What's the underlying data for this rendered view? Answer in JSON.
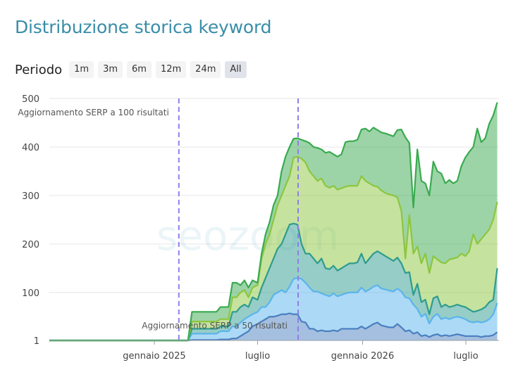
{
  "header": {
    "title": "Distribuzione storica keyword"
  },
  "period": {
    "label": "Periodo",
    "buttons": [
      "1m",
      "3m",
      "6m",
      "12m",
      "24m",
      "All"
    ],
    "selected": "All"
  },
  "watermark": "seozoom",
  "colors": {
    "title": "#3a8da8",
    "grid": "#e6e6e6",
    "annotation": "#8f7ee8",
    "bands": [
      "#4a7fc0",
      "#5ab4ec",
      "#2e9c8e",
      "#8cc63f",
      "#3aaa50"
    ]
  },
  "chart_data": {
    "type": "area",
    "stacked": true,
    "x_start": "2024-07-01",
    "x_end": "2026-08-28",
    "ylim": [
      1,
      500
    ],
    "y_ticks": [
      "1",
      "100",
      "200",
      "300",
      "400",
      "500"
    ],
    "x_ticks": [
      {
        "date": "2025-01-01",
        "label": "gennaio 2025"
      },
      {
        "date": "2025-07-01",
        "label": "luglio"
      },
      {
        "date": "2026-01-01",
        "label": "gennaio 2026"
      },
      {
        "date": "2026-07-01",
        "label": "luglio"
      }
    ],
    "annotations": [
      {
        "date": "2025-02-13",
        "label": "Aggiornamento SERP a 100 risultati"
      },
      {
        "date": "2025-09-10",
        "label": "Aggiornamento SERP a 50 risultati"
      }
    ],
    "x": [
      "2024-07-01",
      "2025-03-01",
      "2025-03-08",
      "2025-04-20",
      "2025-04-27",
      "2025-05-11",
      "2025-05-18",
      "2025-05-25",
      "2025-06-01",
      "2025-06-08",
      "2025-06-15",
      "2025-06-22",
      "2025-07-01",
      "2025-07-08",
      "2025-07-15",
      "2025-07-22",
      "2025-07-29",
      "2025-08-05",
      "2025-08-12",
      "2025-08-19",
      "2025-08-26",
      "2025-09-02",
      "2025-09-09",
      "2025-09-16",
      "2025-09-23",
      "2025-09-30",
      "2025-10-07",
      "2025-10-14",
      "2025-10-21",
      "2025-10-28",
      "2025-11-04",
      "2025-11-11",
      "2025-11-18",
      "2025-11-25",
      "2025-12-02",
      "2025-12-09",
      "2025-12-16",
      "2025-12-23",
      "2025-12-30",
      "2026-01-06",
      "2026-01-13",
      "2026-01-20",
      "2026-01-27",
      "2026-02-03",
      "2026-02-10",
      "2026-02-17",
      "2026-02-24",
      "2026-03-03",
      "2026-03-10",
      "2026-03-17",
      "2026-03-24",
      "2026-03-31",
      "2026-04-07",
      "2026-04-14",
      "2026-04-21",
      "2026-04-28",
      "2026-05-05",
      "2026-05-12",
      "2026-05-19",
      "2026-05-26",
      "2026-06-02",
      "2026-06-09",
      "2026-06-16",
      "2026-06-23",
      "2026-06-30",
      "2026-07-07",
      "2026-07-14",
      "2026-07-21",
      "2026-07-28",
      "2026-08-04",
      "2026-08-11",
      "2026-08-18",
      "2026-08-25"
    ],
    "series": [
      {
        "values": [
          1,
          1,
          2,
          2,
          3,
          3,
          5,
          5,
          10,
          15,
          20,
          30,
          35,
          40,
          45,
          50,
          50,
          52,
          55,
          55,
          57,
          55,
          55,
          40,
          38,
          25,
          25,
          20,
          22,
          20,
          20,
          22,
          20,
          25,
          25,
          25,
          25,
          25,
          30,
          25,
          30,
          35,
          38,
          32,
          30,
          28,
          28,
          35,
          28,
          20,
          22,
          15,
          18,
          10,
          12,
          8,
          12,
          14,
          10,
          12,
          10,
          12,
          14,
          12,
          10,
          10,
          10,
          10,
          8,
          10,
          10,
          12,
          18
        ]
      },
      {
        "values": [
          1,
          1,
          15,
          15,
          20,
          20,
          30,
          30,
          38,
          45,
          50,
          55,
          60,
          70,
          70,
          80,
          95,
          100,
          105,
          100,
          112,
          128,
          130,
          128,
          120,
          110,
          102,
          102,
          98,
          95,
          92,
          98,
          92,
          95,
          98,
          100,
          100,
          100,
          110,
          102,
          106,
          112,
          115,
          108,
          106,
          104,
          102,
          108,
          102,
          90,
          88,
          75,
          66,
          50,
          56,
          36,
          50,
          56,
          45,
          48,
          45,
          48,
          50,
          48,
          45,
          40,
          38,
          40,
          38,
          40,
          45,
          55,
          78
        ]
      },
      {
        "values": [
          1,
          1,
          25,
          25,
          30,
          30,
          60,
          60,
          70,
          75,
          70,
          90,
          85,
          110,
          130,
          150,
          170,
          190,
          200,
          220,
          240,
          242,
          240,
          200,
          180,
          180,
          170,
          160,
          170,
          150,
          148,
          155,
          145,
          150,
          155,
          160,
          160,
          162,
          180,
          160,
          170,
          180,
          185,
          180,
          175,
          170,
          165,
          172,
          160,
          140,
          142,
          95,
          118,
          80,
          85,
          55,
          88,
          92,
          70,
          75,
          70,
          72,
          75,
          72,
          70,
          65,
          60,
          62,
          65,
          70,
          80,
          85,
          150
        ]
      },
      {
        "values": [
          1,
          1,
          40,
          40,
          45,
          45,
          90,
          90,
          100,
          105,
          90,
          110,
          115,
          170,
          200,
          220,
          250,
          280,
          300,
          320,
          340,
          378,
          380,
          376,
          368,
          350,
          340,
          330,
          335,
          320,
          316,
          320,
          312,
          315,
          318,
          320,
          320,
          320,
          340,
          330,
          325,
          320,
          318,
          310,
          305,
          302,
          300,
          296,
          268,
          170,
          260,
          180,
          195,
          160,
          180,
          140,
          175,
          168,
          162,
          160,
          168,
          170,
          172,
          180,
          175,
          185,
          220,
          200,
          210,
          220,
          230,
          250,
          287
        ]
      },
      {
        "values": [
          1,
          1,
          60,
          60,
          70,
          70,
          120,
          120,
          115,
          125,
          110,
          125,
          120,
          180,
          220,
          245,
          280,
          300,
          350,
          380,
          400,
          417,
          418,
          415,
          412,
          408,
          400,
          398,
          395,
          388,
          390,
          385,
          380,
          385,
          410,
          412,
          412,
          415,
          436,
          438,
          432,
          440,
          435,
          430,
          428,
          425,
          422,
          435,
          436,
          420,
          408,
          275,
          395,
          330,
          325,
          300,
          370,
          350,
          345,
          325,
          332,
          325,
          330,
          360,
          378,
          390,
          400,
          438,
          410,
          418,
          448,
          465,
          492
        ]
      }
    ]
  }
}
